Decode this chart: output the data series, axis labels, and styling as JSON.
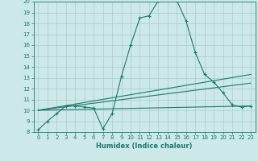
{
  "title": "",
  "xlabel": "Humidex (Indice chaleur)",
  "bg_color": "#cce8e8",
  "grid_color": "#aacccc",
  "line_color": "#1a7a6a",
  "xlim": [
    -0.5,
    23.5
  ],
  "ylim": [
    8,
    20
  ],
  "xticks": [
    0,
    1,
    2,
    3,
    4,
    5,
    6,
    7,
    8,
    9,
    10,
    11,
    12,
    13,
    14,
    15,
    16,
    17,
    18,
    19,
    20,
    21,
    22,
    23
  ],
  "yticks": [
    8,
    9,
    10,
    11,
    12,
    13,
    14,
    15,
    16,
    17,
    18,
    19,
    20
  ],
  "line1_x": [
    0,
    1,
    2,
    3,
    4,
    5,
    6,
    7,
    8,
    9,
    10,
    11,
    12,
    13,
    14,
    15,
    16,
    17,
    18,
    19,
    20,
    21,
    22,
    23
  ],
  "line1_y": [
    8.2,
    9.0,
    9.7,
    10.4,
    10.4,
    10.3,
    10.2,
    8.3,
    9.7,
    13.1,
    16.0,
    18.5,
    18.7,
    20.1,
    20.2,
    20.1,
    18.2,
    15.3,
    13.3,
    12.6,
    11.6,
    10.5,
    10.3,
    10.4
  ],
  "line2_x": [
    0,
    23
  ],
  "line2_y": [
    10.0,
    10.4
  ],
  "line3_x": [
    0,
    23
  ],
  "line3_y": [
    10.0,
    12.5
  ],
  "line4_x": [
    0,
    23
  ],
  "line4_y": [
    10.0,
    13.3
  ],
  "tick_fontsize": 5,
  "xlabel_fontsize": 6
}
